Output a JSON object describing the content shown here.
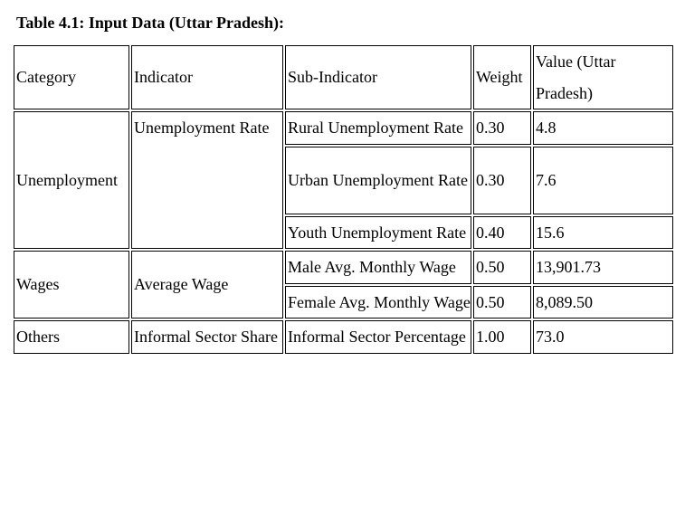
{
  "document": {
    "caption": "Table 4.1: Input Data (Uttar Pradesh):",
    "table": {
      "headers": [
        "Category",
        "Indicator",
        "Sub-Indicator",
        "Weight",
        "Value (Uttar Pradesh)"
      ],
      "groups": [
        {
          "category": "Unemployment",
          "indicator": "Unemployment Rate",
          "rows": [
            {
              "sub_indicator": "Rural Unemployment Rate",
              "weight": "0.30",
              "value": "4.8"
            },
            {
              "sub_indicator": "Urban Unemployment Rate",
              "weight": "0.30",
              "value": "7.6"
            },
            {
              "sub_indicator": "Youth Unemployment Rate",
              "weight": "0.40",
              "value": "15.6"
            }
          ]
        },
        {
          "category": "Wages",
          "indicator": "Average Wage",
          "rows": [
            {
              "sub_indicator": "Male Avg. Monthly Wage",
              "weight": "0.50",
              "value": "13,901.73"
            },
            {
              "sub_indicator": "Female Avg. Monthly Wage",
              "weight": "0.50",
              "value": "8,089.50"
            }
          ]
        },
        {
          "category": "Others",
          "indicator": "Informal Sector Share",
          "rows": [
            {
              "sub_indicator": "Informal Sector Percentage",
              "weight": "1.00",
              "value": "73.0"
            }
          ]
        }
      ]
    }
  }
}
